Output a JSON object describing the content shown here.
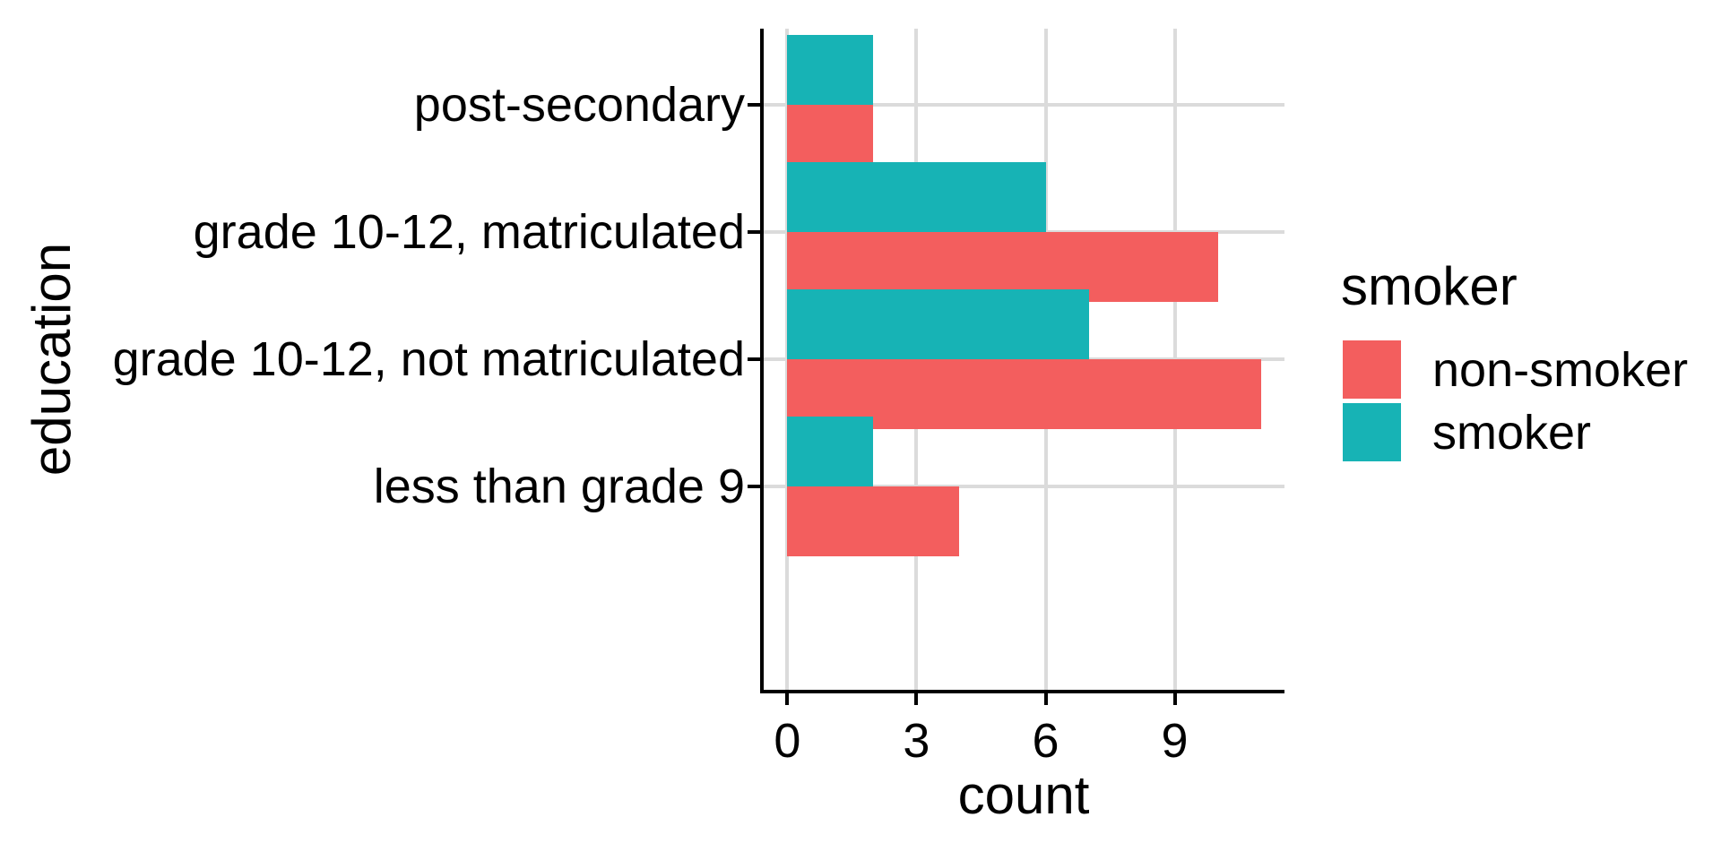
{
  "chart_data": {
    "type": "bar",
    "orientation": "horizontal",
    "xlabel": "count",
    "ylabel": "education",
    "categories": [
      "post-secondary",
      "grade 10-12, matriculated",
      "grade 10-12, not matriculated",
      "less than grade 9"
    ],
    "series": [
      {
        "name": "non-smoker",
        "color": "#F35E5E",
        "values": [
          2,
          10,
          11,
          4
        ]
      },
      {
        "name": "smoker",
        "color": "#17B3B5",
        "values": [
          2,
          6,
          7,
          2
        ]
      }
    ],
    "x_ticks": [
      0,
      3,
      6,
      9
    ],
    "xlim": [
      -0.55,
      11.55
    ],
    "grid": true,
    "legend": {
      "title": "smoker",
      "position": "right",
      "entries": [
        {
          "label": "non-smoker",
          "color": "#F35E5E"
        },
        {
          "label": "smoker",
          "color": "#17B3B5"
        }
      ]
    },
    "colors": {
      "axis_line": "#000000",
      "gridline": "#DBDBDB",
      "text": "#000000",
      "background": "#FFFFFF"
    }
  }
}
